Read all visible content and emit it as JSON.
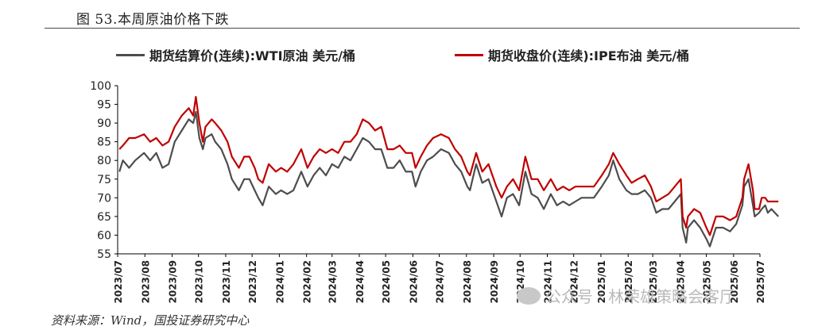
{
  "figure": {
    "title": "图 53.本周原油价格下跌",
    "source": "资料来源：Wind，国投证券研究中心",
    "watermark": "公众号 · 林荣雄策略会客厅"
  },
  "colors": {
    "wti": "#4d4d4d",
    "brent": "#c00000",
    "axis": "#000000"
  },
  "chart_data": {
    "type": "line",
    "ylim": [
      55,
      100
    ],
    "yticks": [
      55,
      60,
      65,
      70,
      75,
      80,
      85,
      90,
      95,
      100
    ],
    "x_range": [
      "2023-07-01",
      "2025-07-01"
    ],
    "xticks": [
      "2023/07",
      "2023/08",
      "2023/09",
      "2023/10",
      "2023/11",
      "2023/12",
      "2024/01",
      "2024/02",
      "2024/03",
      "2024/04",
      "2024/05",
      "2024/06",
      "2024/07",
      "2024/08",
      "2024/09",
      "2024/10",
      "2024/11",
      "2024/12",
      "2025/01",
      "2025/02",
      "2025/03",
      "2025/04",
      "2025/05",
      "2025/06",
      "2025/07"
    ],
    "legend_position": "top",
    "series": [
      {
        "name": "期货结算价(连续):WTI原油 美元/桶",
        "key": "wti",
        "points": [
          [
            "2023-07-03",
            77
          ],
          [
            "2023-07-07",
            80
          ],
          [
            "2023-07-14",
            78
          ],
          [
            "2023-07-21",
            80
          ],
          [
            "2023-07-31",
            82
          ],
          [
            "2023-08-07",
            80
          ],
          [
            "2023-08-14",
            82
          ],
          [
            "2023-08-21",
            78
          ],
          [
            "2023-08-28",
            79
          ],
          [
            "2023-09-04",
            85
          ],
          [
            "2023-09-12",
            88
          ],
          [
            "2023-09-20",
            91
          ],
          [
            "2023-09-25",
            90
          ],
          [
            "2023-09-28",
            93
          ],
          [
            "2023-10-02",
            86
          ],
          [
            "2023-10-06",
            83
          ],
          [
            "2023-10-09",
            86
          ],
          [
            "2023-10-16",
            87
          ],
          [
            "2023-10-20",
            85
          ],
          [
            "2023-10-27",
            83
          ],
          [
            "2023-11-03",
            79
          ],
          [
            "2023-11-08",
            75
          ],
          [
            "2023-11-16",
            72
          ],
          [
            "2023-11-22",
            75
          ],
          [
            "2023-11-28",
            75
          ],
          [
            "2023-12-04",
            72
          ],
          [
            "2023-12-08",
            70
          ],
          [
            "2023-12-13",
            68
          ],
          [
            "2023-12-20",
            73
          ],
          [
            "2023-12-28",
            71
          ],
          [
            "2024-01-03",
            72
          ],
          [
            "2024-01-10",
            71
          ],
          [
            "2024-01-17",
            72
          ],
          [
            "2024-01-26",
            77
          ],
          [
            "2024-02-02",
            73
          ],
          [
            "2024-02-09",
            76
          ],
          [
            "2024-02-16",
            78
          ],
          [
            "2024-02-23",
            76
          ],
          [
            "2024-03-01",
            79
          ],
          [
            "2024-03-08",
            78
          ],
          [
            "2024-03-15",
            81
          ],
          [
            "2024-03-22",
            80
          ],
          [
            "2024-03-29",
            83
          ],
          [
            "2024-04-05",
            86
          ],
          [
            "2024-04-12",
            85
          ],
          [
            "2024-04-19",
            83
          ],
          [
            "2024-04-26",
            83
          ],
          [
            "2024-05-03",
            78
          ],
          [
            "2024-05-10",
            78
          ],
          [
            "2024-05-17",
            80
          ],
          [
            "2024-05-24",
            77
          ],
          [
            "2024-05-31",
            77
          ],
          [
            "2024-06-04",
            73
          ],
          [
            "2024-06-10",
            77
          ],
          [
            "2024-06-17",
            80
          ],
          [
            "2024-06-24",
            81
          ],
          [
            "2024-07-03",
            83
          ],
          [
            "2024-07-12",
            82
          ],
          [
            "2024-07-19",
            79
          ],
          [
            "2024-07-26",
            77
          ],
          [
            "2024-08-02",
            73
          ],
          [
            "2024-08-05",
            72
          ],
          [
            "2024-08-12",
            79
          ],
          [
            "2024-08-19",
            74
          ],
          [
            "2024-08-26",
            75
          ],
          [
            "2024-09-04",
            69
          ],
          [
            "2024-09-10",
            65
          ],
          [
            "2024-09-16",
            70
          ],
          [
            "2024-09-23",
            71
          ],
          [
            "2024-09-30",
            68
          ],
          [
            "2024-10-07",
            77
          ],
          [
            "2024-10-14",
            71
          ],
          [
            "2024-10-21",
            70
          ],
          [
            "2024-10-28",
            67
          ],
          [
            "2024-11-05",
            71
          ],
          [
            "2024-11-12",
            68
          ],
          [
            "2024-11-19",
            69
          ],
          [
            "2024-11-26",
            68
          ],
          [
            "2024-12-03",
            69
          ],
          [
            "2024-12-10",
            70
          ],
          [
            "2024-12-17",
            70
          ],
          [
            "2024-12-24",
            70
          ],
          [
            "2025-01-02",
            73
          ],
          [
            "2025-01-10",
            76
          ],
          [
            "2025-01-15",
            80
          ],
          [
            "2025-01-22",
            75
          ],
          [
            "2025-01-30",
            72
          ],
          [
            "2025-02-05",
            71
          ],
          [
            "2025-02-12",
            71
          ],
          [
            "2025-02-20",
            72
          ],
          [
            "2025-02-27",
            70
          ],
          [
            "2025-03-05",
            66
          ],
          [
            "2025-03-12",
            67
          ],
          [
            "2025-03-19",
            67
          ],
          [
            "2025-03-26",
            69
          ],
          [
            "2025-04-02",
            71
          ],
          [
            "2025-04-04",
            62
          ],
          [
            "2025-04-08",
            58
          ],
          [
            "2025-04-10",
            62
          ],
          [
            "2025-04-17",
            64
          ],
          [
            "2025-04-24",
            62
          ],
          [
            "2025-05-01",
            59
          ],
          [
            "2025-05-05",
            57
          ],
          [
            "2025-05-12",
            62
          ],
          [
            "2025-05-20",
            62
          ],
          [
            "2025-05-28",
            61
          ],
          [
            "2025-06-04",
            63
          ],
          [
            "2025-06-11",
            68
          ],
          [
            "2025-06-13",
            73
          ],
          [
            "2025-06-18",
            75
          ],
          [
            "2025-06-23",
            68
          ],
          [
            "2025-06-25",
            65
          ],
          [
            "2025-06-30",
            66
          ],
          [
            "2025-07-03",
            67
          ],
          [
            "2025-07-07",
            68
          ],
          [
            "2025-07-10",
            66
          ],
          [
            "2025-07-14",
            67
          ],
          [
            "2025-07-18",
            66
          ],
          [
            "2025-07-22",
            65
          ]
        ]
      },
      {
        "name": "期货收盘价(连续):IPE布油 美元/桶",
        "key": "brent",
        "points": [
          [
            "2023-07-03",
            83
          ],
          [
            "2023-07-07",
            84
          ],
          [
            "2023-07-14",
            86
          ],
          [
            "2023-07-21",
            86
          ],
          [
            "2023-07-31",
            87
          ],
          [
            "2023-08-07",
            85
          ],
          [
            "2023-08-14",
            86
          ],
          [
            "2023-08-21",
            84
          ],
          [
            "2023-08-28",
            85
          ],
          [
            "2023-09-04",
            89
          ],
          [
            "2023-09-12",
            92
          ],
          [
            "2023-09-20",
            94
          ],
          [
            "2023-09-25",
            92
          ],
          [
            "2023-09-28",
            97
          ],
          [
            "2023-10-02",
            90
          ],
          [
            "2023-10-06",
            85
          ],
          [
            "2023-10-09",
            89
          ],
          [
            "2023-10-16",
            91
          ],
          [
            "2023-10-20",
            90
          ],
          [
            "2023-10-27",
            88
          ],
          [
            "2023-11-03",
            85
          ],
          [
            "2023-11-08",
            81
          ],
          [
            "2023-11-16",
            78
          ],
          [
            "2023-11-22",
            81
          ],
          [
            "2023-11-28",
            81
          ],
          [
            "2023-12-04",
            78
          ],
          [
            "2023-12-08",
            75
          ],
          [
            "2023-12-13",
            74
          ],
          [
            "2023-12-20",
            79
          ],
          [
            "2023-12-28",
            77
          ],
          [
            "2024-01-03",
            78
          ],
          [
            "2024-01-10",
            77
          ],
          [
            "2024-01-17",
            79
          ],
          [
            "2024-01-26",
            83
          ],
          [
            "2024-02-02",
            78
          ],
          [
            "2024-02-09",
            81
          ],
          [
            "2024-02-16",
            83
          ],
          [
            "2024-02-23",
            82
          ],
          [
            "2024-03-01",
            83
          ],
          [
            "2024-03-08",
            82
          ],
          [
            "2024-03-15",
            85
          ],
          [
            "2024-03-22",
            85
          ],
          [
            "2024-03-29",
            87
          ],
          [
            "2024-04-05",
            91
          ],
          [
            "2024-04-12",
            90
          ],
          [
            "2024-04-19",
            88
          ],
          [
            "2024-04-26",
            89
          ],
          [
            "2024-05-03",
            83
          ],
          [
            "2024-05-10",
            83
          ],
          [
            "2024-05-17",
            84
          ],
          [
            "2024-05-24",
            82
          ],
          [
            "2024-05-31",
            82
          ],
          [
            "2024-06-04",
            78
          ],
          [
            "2024-06-10",
            81
          ],
          [
            "2024-06-17",
            84
          ],
          [
            "2024-06-24",
            86
          ],
          [
            "2024-07-03",
            87
          ],
          [
            "2024-07-12",
            86
          ],
          [
            "2024-07-19",
            83
          ],
          [
            "2024-07-26",
            81
          ],
          [
            "2024-08-02",
            77
          ],
          [
            "2024-08-05",
            76
          ],
          [
            "2024-08-12",
            82
          ],
          [
            "2024-08-19",
            77
          ],
          [
            "2024-08-26",
            79
          ],
          [
            "2024-09-04",
            73
          ],
          [
            "2024-09-10",
            70
          ],
          [
            "2024-09-16",
            73
          ],
          [
            "2024-09-23",
            75
          ],
          [
            "2024-09-30",
            72
          ],
          [
            "2024-10-07",
            81
          ],
          [
            "2024-10-14",
            75
          ],
          [
            "2024-10-21",
            75
          ],
          [
            "2024-10-28",
            72
          ],
          [
            "2024-11-05",
            75
          ],
          [
            "2024-11-12",
            72
          ],
          [
            "2024-11-19",
            73
          ],
          [
            "2024-11-26",
            72
          ],
          [
            "2024-12-03",
            73
          ],
          [
            "2024-12-10",
            73
          ],
          [
            "2024-12-17",
            73
          ],
          [
            "2024-12-24",
            73
          ],
          [
            "2025-01-02",
            76
          ],
          [
            "2025-01-10",
            79
          ],
          [
            "2025-01-15",
            82
          ],
          [
            "2025-01-22",
            79
          ],
          [
            "2025-01-30",
            76
          ],
          [
            "2025-02-05",
            74
          ],
          [
            "2025-02-12",
            75
          ],
          [
            "2025-02-20",
            76
          ],
          [
            "2025-02-27",
            73
          ],
          [
            "2025-03-05",
            69
          ],
          [
            "2025-03-12",
            70
          ],
          [
            "2025-03-19",
            71
          ],
          [
            "2025-03-26",
            73
          ],
          [
            "2025-04-02",
            75
          ],
          [
            "2025-04-04",
            65
          ],
          [
            "2025-04-08",
            62
          ],
          [
            "2025-04-10",
            65
          ],
          [
            "2025-04-17",
            67
          ],
          [
            "2025-04-24",
            66
          ],
          [
            "2025-05-01",
            62
          ],
          [
            "2025-05-05",
            60
          ],
          [
            "2025-05-12",
            65
          ],
          [
            "2025-05-20",
            65
          ],
          [
            "2025-05-28",
            64
          ],
          [
            "2025-06-04",
            65
          ],
          [
            "2025-06-11",
            70
          ],
          [
            "2025-06-13",
            75
          ],
          [
            "2025-06-18",
            79
          ],
          [
            "2025-06-23",
            72
          ],
          [
            "2025-06-25",
            67
          ],
          [
            "2025-06-30",
            67
          ],
          [
            "2025-07-03",
            70
          ],
          [
            "2025-07-07",
            70
          ],
          [
            "2025-07-10",
            69
          ],
          [
            "2025-07-14",
            69
          ],
          [
            "2025-07-18",
            69
          ],
          [
            "2025-07-22",
            69
          ]
        ]
      }
    ]
  }
}
